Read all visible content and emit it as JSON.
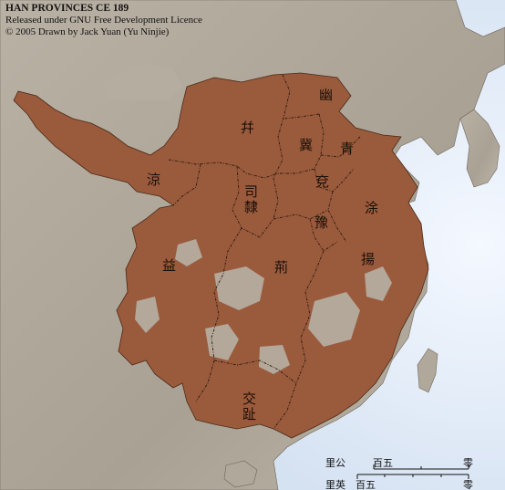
{
  "credits": {
    "title": "HAN PROVINCES CE 189",
    "line2": "Released under GNU Free Development Licence",
    "line3": "© 2005 Drawn by Jack Yuan (Yu Ninjie)"
  },
  "provinces": {
    "you": "幽",
    "bing": "幷",
    "ji": "冀",
    "qing": "青",
    "liang": "涼",
    "yan": "兗",
    "sili": "司隸",
    "xu": "涂",
    "yu": "豫",
    "yi": "益",
    "jing": "荊",
    "yang": "揚",
    "jiao": "交趾"
  },
  "scale": {
    "km_unit": "里公",
    "mile_unit": "里英",
    "km_value": "百五",
    "mile_value": "百五",
    "zero": "零"
  },
  "colors": {
    "sea": "#d8e4f2",
    "land": "#b3aa9c",
    "han_territory": "#9a5a3c",
    "border": "#2a1a10"
  }
}
